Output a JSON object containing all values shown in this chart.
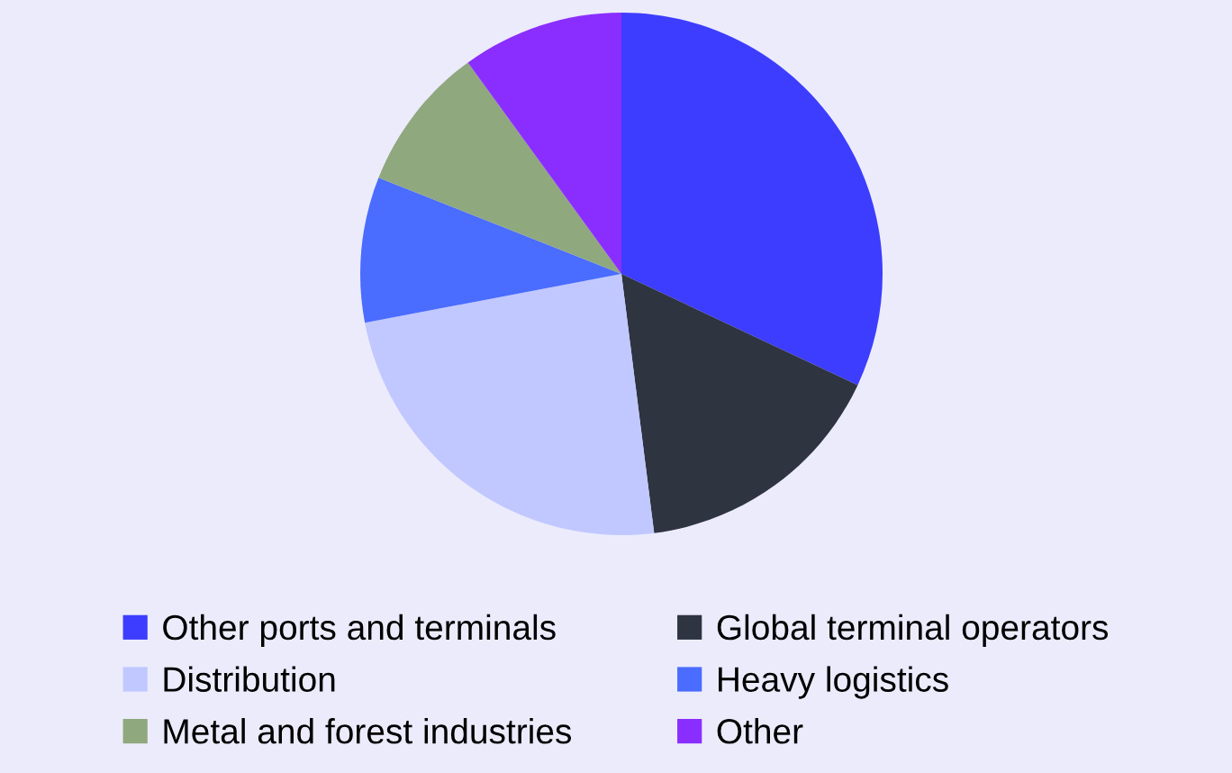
{
  "chart_data": {
    "type": "pie",
    "categories": [
      "Other ports and terminals",
      "Global terminal operators",
      "Distribution",
      "Heavy logistics",
      "Metal and forest industries",
      "Other"
    ],
    "values": [
      32,
      16,
      24,
      9,
      9,
      10
    ],
    "colors": [
      "#3d3dff",
      "#2e3440",
      "#c0c8ff",
      "#4a6cff",
      "#8fa87e",
      "#8a2eff"
    ],
    "legend": "bottom"
  }
}
